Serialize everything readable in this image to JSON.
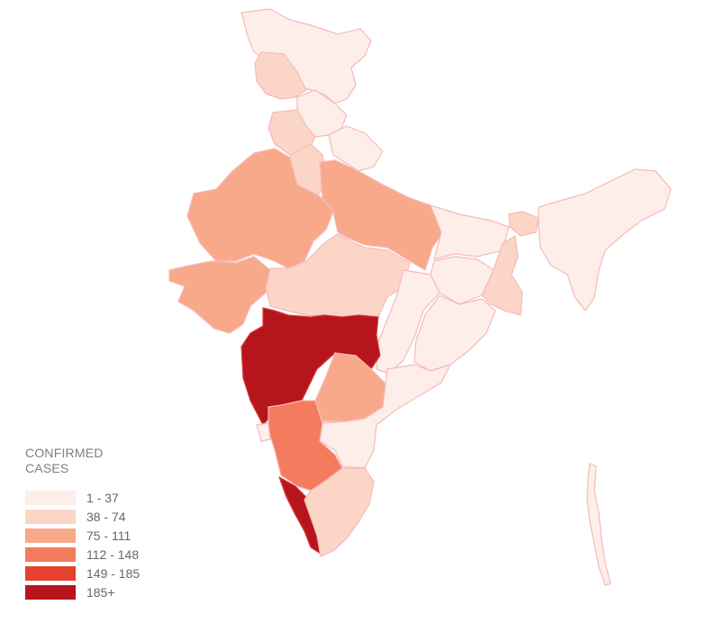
{
  "legend": {
    "title": "CONFIRMED\nCASES",
    "items": [
      {
        "label": "1 - 37",
        "color": "#fdeee9"
      },
      {
        "label": "38 - 74",
        "color": "#fbd6c6"
      },
      {
        "label": "75 - 111",
        "color": "#f7a98a"
      },
      {
        "label": "112 - 148",
        "color": "#f37c5f"
      },
      {
        "label": "149 - 185",
        "color": "#e5412f"
      },
      {
        "label": "185+",
        "color": "#b7151c"
      }
    ]
  },
  "regions": [
    {
      "id": "jammu-kashmir",
      "bin": 0
    },
    {
      "id": "ladakh-pok",
      "bin": 1
    },
    {
      "id": "himachal",
      "bin": 0
    },
    {
      "id": "punjab",
      "bin": 1
    },
    {
      "id": "uttarakhand",
      "bin": 0
    },
    {
      "id": "haryana",
      "bin": 1
    },
    {
      "id": "rajasthan",
      "bin": 2
    },
    {
      "id": "uttar-pradesh",
      "bin": 2
    },
    {
      "id": "gujarat",
      "bin": 2
    },
    {
      "id": "madhya-pradesh",
      "bin": 1
    },
    {
      "id": "bihar",
      "bin": 0
    },
    {
      "id": "jharkhand",
      "bin": 0
    },
    {
      "id": "west-bengal",
      "bin": 1
    },
    {
      "id": "chhattisgarh",
      "bin": 0
    },
    {
      "id": "odisha",
      "bin": 0
    },
    {
      "id": "maharashtra",
      "bin": 5
    },
    {
      "id": "telangana",
      "bin": 2
    },
    {
      "id": "andhra-pradesh",
      "bin": 0
    },
    {
      "id": "karnataka",
      "bin": 3
    },
    {
      "id": "goa",
      "bin": 0
    },
    {
      "id": "kerala",
      "bin": 5
    },
    {
      "id": "tamil-nadu",
      "bin": 1
    },
    {
      "id": "sikkim",
      "bin": 1
    },
    {
      "id": "northeast",
      "bin": 0
    },
    {
      "id": "andaman",
      "bin": 0
    }
  ]
}
